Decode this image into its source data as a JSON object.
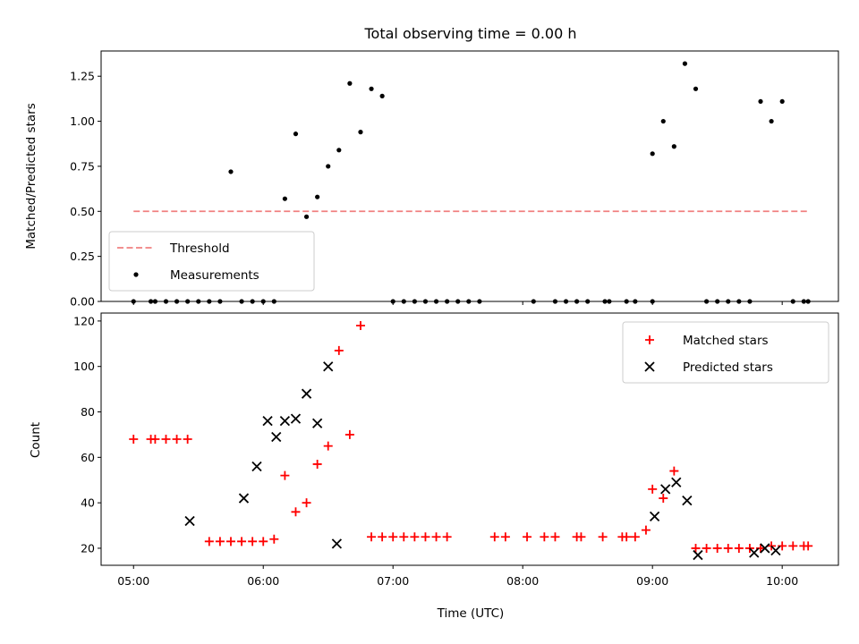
{
  "chart_data": [
    {
      "type": "scatter",
      "title": "Total observing time = 0.00 h",
      "xlabel": "",
      "ylabel": "Matched/Predicted stars",
      "xlim": [
        "04:45",
        "10:26"
      ],
      "ylim": [
        0,
        1.39
      ],
      "yticks": [
        "0.00",
        "0.25",
        "0.50",
        "0.75",
        "1.00",
        "1.25"
      ],
      "legend": {
        "placement": "lower-left",
        "entries": [
          "Threshold",
          "Measurements"
        ]
      },
      "threshold": {
        "name": "Threshold",
        "y": 0.5,
        "x_start": "05:00",
        "x_end": "10:12",
        "color": "#f08080"
      },
      "series": [
        {
          "name": "Measurements",
          "color": "#000000",
          "points": [
            [
              "05:00",
              0
            ],
            [
              "05:08",
              0
            ],
            [
              "05:10",
              0
            ],
            [
              "05:15",
              0
            ],
            [
              "05:20",
              0
            ],
            [
              "05:25",
              0
            ],
            [
              "05:30",
              0
            ],
            [
              "05:35",
              0
            ],
            [
              "05:40",
              0
            ],
            [
              "05:45",
              0.72
            ],
            [
              "05:50",
              0
            ],
            [
              "05:55",
              0
            ],
            [
              "06:00",
              0
            ],
            [
              "06:05",
              0
            ],
            [
              "06:10",
              0.57
            ],
            [
              "06:15",
              0.93
            ],
            [
              "06:20",
              0.47
            ],
            [
              "06:25",
              0.58
            ],
            [
              "06:30",
              0.75
            ],
            [
              "06:35",
              0.84
            ],
            [
              "06:40",
              1.21
            ],
            [
              "06:45",
              0.94
            ],
            [
              "06:50",
              1.18
            ],
            [
              "06:55",
              1.14
            ],
            [
              "07:00",
              0
            ],
            [
              "07:05",
              0
            ],
            [
              "07:10",
              0
            ],
            [
              "07:15",
              0
            ],
            [
              "07:20",
              0
            ],
            [
              "07:25",
              0
            ],
            [
              "07:30",
              0
            ],
            [
              "07:35",
              0
            ],
            [
              "07:40",
              0
            ],
            [
              "08:05",
              0
            ],
            [
              "08:15",
              0
            ],
            [
              "08:20",
              0
            ],
            [
              "08:25",
              0
            ],
            [
              "08:30",
              0
            ],
            [
              "08:38",
              0
            ],
            [
              "08:40",
              0
            ],
            [
              "08:48",
              0
            ],
            [
              "08:52",
              0
            ],
            [
              "09:00",
              0
            ],
            [
              "09:00",
              0.82
            ],
            [
              "09:05",
              1.0
            ],
            [
              "09:10",
              0.86
            ],
            [
              "09:15",
              1.32
            ],
            [
              "09:20",
              1.18
            ],
            [
              "09:25",
              0
            ],
            [
              "09:30",
              0
            ],
            [
              "09:35",
              0
            ],
            [
              "09:40",
              0
            ],
            [
              "09:45",
              0
            ],
            [
              "09:50",
              1.11
            ],
            [
              "09:55",
              1.0
            ],
            [
              "10:00",
              1.11
            ],
            [
              "10:05",
              0
            ],
            [
              "10:10",
              0
            ],
            [
              "10:12",
              0
            ]
          ]
        }
      ]
    },
    {
      "type": "scatter",
      "title": "",
      "xlabel": "Time (UTC)",
      "ylabel": "Count",
      "xlim": [
        "04:45",
        "10:26"
      ],
      "ylim": [
        12.5,
        123.5
      ],
      "xticks": [
        "05:00",
        "06:00",
        "07:00",
        "08:00",
        "09:00",
        "10:00"
      ],
      "yticks": [
        "20",
        "40",
        "60",
        "80",
        "100",
        "120"
      ],
      "legend": {
        "placement": "upper-right",
        "entries": [
          "Matched stars",
          "Predicted stars"
        ]
      },
      "series": [
        {
          "name": "Matched stars",
          "marker": "plus",
          "color": "#ff0000",
          "points": [
            [
              "05:00",
              68
            ],
            [
              "05:08",
              68
            ],
            [
              "05:10",
              68
            ],
            [
              "05:15",
              68
            ],
            [
              "05:20",
              68
            ],
            [
              "05:25",
              68
            ],
            [
              "05:35",
              23
            ],
            [
              "05:40",
              23
            ],
            [
              "05:45",
              23
            ],
            [
              "05:50",
              23
            ],
            [
              "05:55",
              23
            ],
            [
              "06:00",
              23
            ],
            [
              "06:05",
              24
            ],
            [
              "06:10",
              52
            ],
            [
              "06:15",
              36
            ],
            [
              "06:20",
              40
            ],
            [
              "06:25",
              57
            ],
            [
              "06:30",
              65
            ],
            [
              "06:35",
              107
            ],
            [
              "06:40",
              70
            ],
            [
              "06:45",
              118
            ],
            [
              "06:50",
              25
            ],
            [
              "06:55",
              25
            ],
            [
              "07:00",
              25
            ],
            [
              "07:05",
              25
            ],
            [
              "07:10",
              25
            ],
            [
              "07:15",
              25
            ],
            [
              "07:20",
              25
            ],
            [
              "07:25",
              25
            ],
            [
              "07:47",
              25
            ],
            [
              "07:52",
              25
            ],
            [
              "08:02",
              25
            ],
            [
              "08:10",
              25
            ],
            [
              "08:15",
              25
            ],
            [
              "08:25",
              25
            ],
            [
              "08:27",
              25
            ],
            [
              "08:37",
              25
            ],
            [
              "08:46",
              25
            ],
            [
              "08:48",
              25
            ],
            [
              "08:52",
              25
            ],
            [
              "08:57",
              28
            ],
            [
              "09:00",
              46
            ],
            [
              "09:05",
              42
            ],
            [
              "09:10",
              54
            ],
            [
              "09:20",
              20
            ],
            [
              "09:25",
              20
            ],
            [
              "09:30",
              20
            ],
            [
              "09:35",
              20
            ],
            [
              "09:40",
              20
            ],
            [
              "09:45",
              20
            ],
            [
              "09:50",
              20
            ],
            [
              "09:55",
              21
            ],
            [
              "10:00",
              21
            ],
            [
              "10:05",
              21
            ],
            [
              "10:10",
              21
            ],
            [
              "10:12",
              21
            ]
          ]
        },
        {
          "name": "Predicted stars",
          "marker": "x",
          "color": "#000000",
          "points": [
            [
              "05:26",
              32
            ],
            [
              "05:51",
              42
            ],
            [
              "05:57",
              56
            ],
            [
              "06:02",
              76
            ],
            [
              "06:06",
              69
            ],
            [
              "06:10",
              76
            ],
            [
              "06:15",
              77
            ],
            [
              "06:20",
              88
            ],
            [
              "06:25",
              75
            ],
            [
              "06:30",
              100
            ],
            [
              "06:34",
              22
            ],
            [
              "09:01",
              34
            ],
            [
              "09:06",
              46
            ],
            [
              "09:11",
              49
            ],
            [
              "09:16",
              41
            ],
            [
              "09:21",
              17
            ],
            [
              "09:47",
              18
            ],
            [
              "09:52",
              20
            ],
            [
              "09:57",
              19
            ]
          ]
        }
      ]
    }
  ]
}
